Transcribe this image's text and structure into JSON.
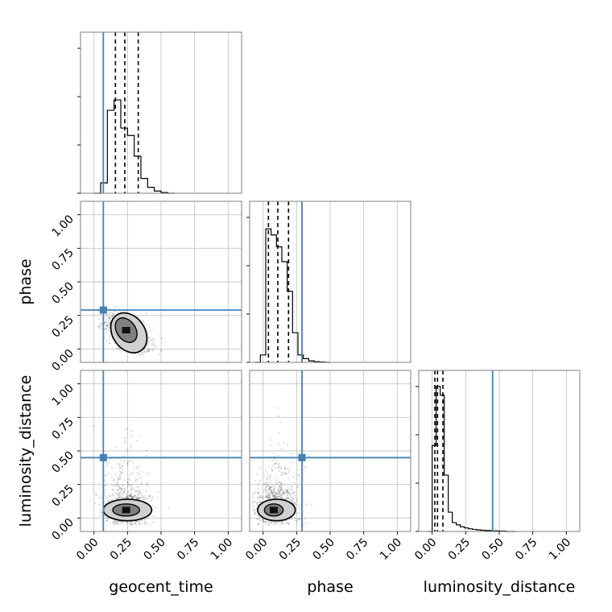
{
  "chart_data": {
    "type": "corner",
    "parameters": [
      "geocent_time",
      "phase",
      "luminosity_distance"
    ],
    "axis_range": [
      -0.1,
      1.1
    ],
    "tick_values": [
      0.0,
      0.25,
      0.5,
      0.75,
      1.0
    ],
    "tick_labels": [
      "0.00",
      "0.25",
      "0.50",
      "0.75",
      "1.00"
    ],
    "truths": {
      "geocent_time": 0.07,
      "phase": 0.29,
      "luminosity_distance": 0.45
    },
    "truth_color": "#4682b4",
    "grid": true,
    "quantiles": {
      "geocent_time": [
        0.16,
        0.23,
        0.33
      ],
      "phase": [
        0.04,
        0.11,
        0.19
      ],
      "luminosity_distance": [
        0.02,
        0.04,
        0.08
      ]
    },
    "histograms": {
      "geocent_time": {
        "bin_edges": [
          0.0,
          0.05,
          0.1,
          0.15,
          0.2,
          0.25,
          0.3,
          0.35,
          0.4,
          0.45,
          0.5,
          0.55,
          0.6
        ],
        "counts": [
          0,
          0.07,
          0.56,
          0.63,
          0.44,
          0.39,
          0.25,
          0.1,
          0.04,
          0.015,
          0.005,
          0
        ]
      },
      "phase": {
        "bin_edges": [
          -0.06,
          -0.02,
          0.02,
          0.06,
          0.1,
          0.14,
          0.18,
          0.22,
          0.26,
          0.3,
          0.34,
          0.38,
          0.42,
          0.46,
          0.5
        ],
        "counts": [
          0,
          0.05,
          0.9,
          0.86,
          0.78,
          0.68,
          0.48,
          0.2,
          0.05,
          0.025,
          0.01,
          0.005,
          0.003,
          0
        ]
      },
      "luminosity_distance": {
        "bin_edges": [
          -0.03,
          0.0,
          0.03,
          0.06,
          0.09,
          0.12,
          0.15,
          0.18,
          0.21,
          0.24,
          0.27,
          0.3,
          0.33,
          0.36,
          0.4,
          0.45,
          0.5,
          0.55,
          0.62
        ],
        "counts": [
          0,
          0.58,
          0.98,
          0.92,
          0.38,
          0.13,
          0.06,
          0.045,
          0.032,
          0.024,
          0.018,
          0.014,
          0.011,
          0.008,
          0.006,
          0.004,
          0.003,
          0
        ]
      }
    },
    "scatter_stats": {
      "geocent_time_vs_phase": {
        "mean_x": 0.25,
        "mean_y": 0.12,
        "sd_x": 0.085,
        "sd_y": 0.075,
        "correlation": -0.55
      },
      "geocent_time_vs_luminosity_distance": {
        "mean_x": 0.24,
        "mean_y": 0.06,
        "sd_x": 0.085,
        "sd_y": 0.08,
        "correlation": 0.0
      },
      "phase_vs_luminosity_distance": {
        "mean_x": 0.1,
        "mean_y": 0.06,
        "sd_x": 0.08,
        "sd_y": 0.08,
        "correlation": 0.0
      }
    },
    "contours": {
      "geocent_time_vs_phase": [
        {
          "cx": 0.24,
          "cy": 0.14,
          "rx": 0.07,
          "ry": 0.1,
          "rotate": -35
        },
        {
          "cx": 0.26,
          "cy": 0.12,
          "rx": 0.12,
          "ry": 0.16,
          "rotate": -35
        }
      ],
      "geocent_time_vs_luminosity_distance": [
        {
          "cx": 0.24,
          "cy": 0.06,
          "rx": 0.1,
          "ry": 0.045,
          "rotate": 0
        },
        {
          "cx": 0.25,
          "cy": 0.06,
          "rx": 0.18,
          "ry": 0.08,
          "rotate": 0
        }
      ],
      "phase_vs_luminosity_distance": [
        {
          "cx": 0.08,
          "cy": 0.06,
          "rx": 0.07,
          "ry": 0.045,
          "rotate": 0
        },
        {
          "cx": 0.1,
          "cy": 0.06,
          "rx": 0.14,
          "ry": 0.08,
          "rotate": 0
        }
      ]
    }
  }
}
